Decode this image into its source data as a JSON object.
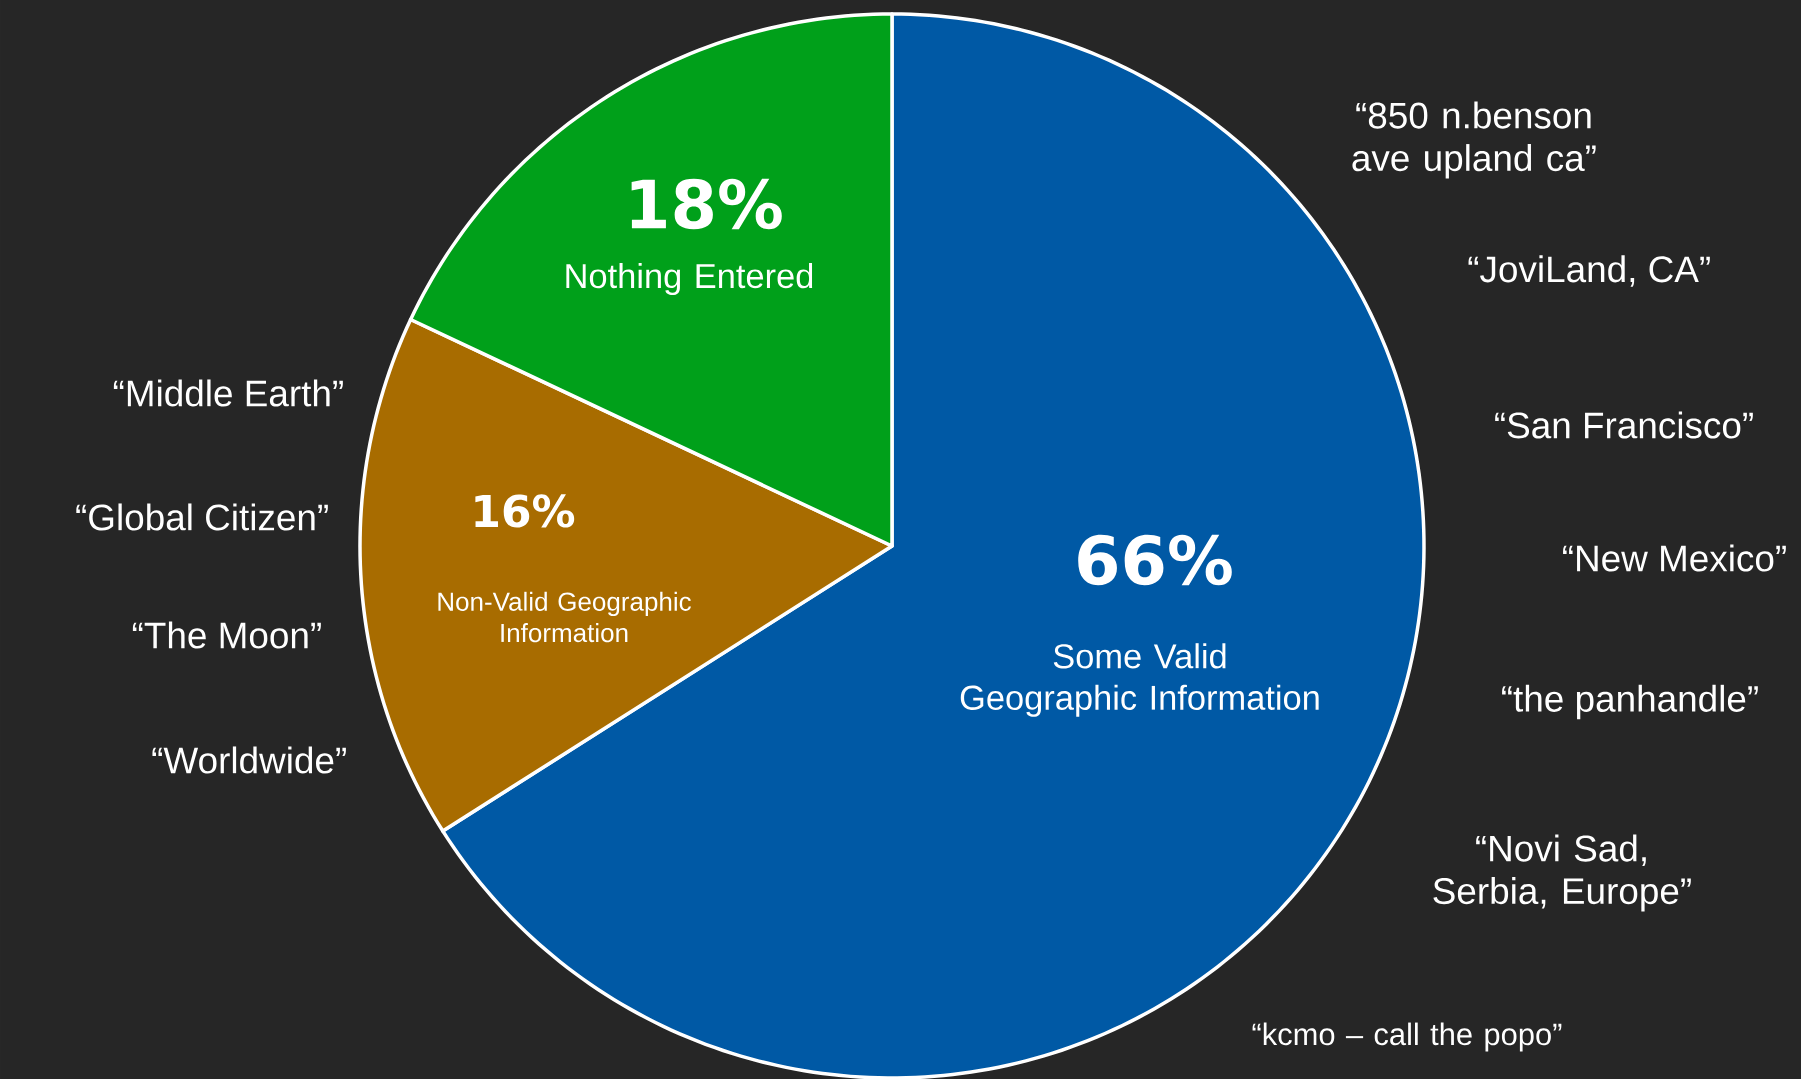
{
  "chart_data": {
    "type": "pie",
    "categories": [
      "Some Valid Geographic Information",
      "Non-Valid Geographic Information",
      "Nothing Entered"
    ],
    "values": [
      66,
      16,
      18
    ],
    "value_labels": [
      "66%",
      "16%",
      "18%"
    ],
    "colors": [
      "#0059a5",
      "#a86c00",
      "#00a01a"
    ],
    "annotations": [
      "“Middle Earth”",
      "“Global Citizen”",
      "“The Moon”",
      "“Worldwide”",
      "“850 n.benson ave upland ca”",
      "“JoviLand, CA”",
      "“San Francisco”",
      "“New Mexico”",
      "“the panhandle”",
      "“Novi Sad, Serbia, Europe”",
      "“kcmo – call the popo”"
    ]
  }
}
